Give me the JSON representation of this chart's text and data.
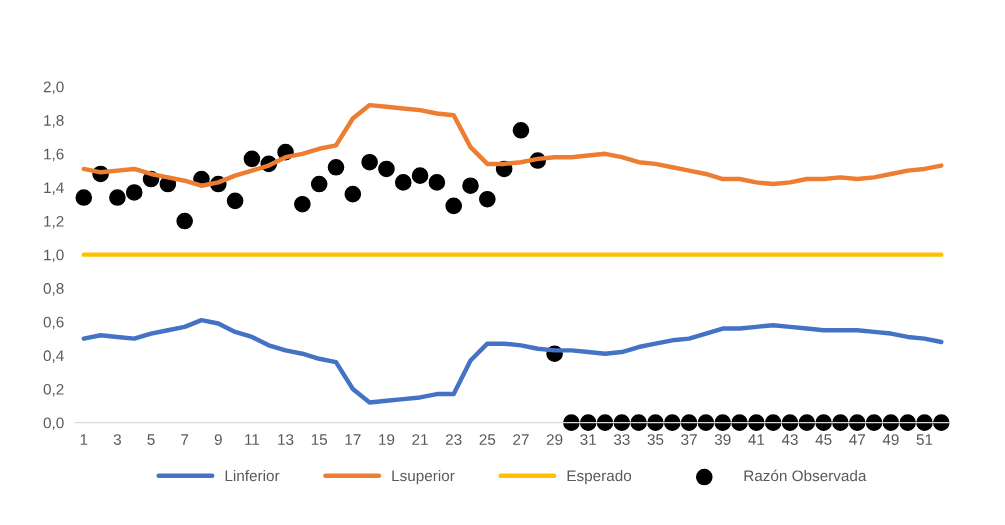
{
  "chart_data": {
    "type": "line",
    "categories": [
      "1",
      null,
      "3",
      null,
      "5",
      null,
      "7",
      null,
      "9",
      null,
      "11",
      null,
      "13",
      null,
      "15",
      null,
      "17",
      null,
      "19",
      null,
      "21",
      null,
      "23",
      null,
      "25",
      null,
      "27",
      null,
      "29",
      null,
      "31",
      null,
      "33",
      null,
      "35",
      null,
      "37",
      null,
      "39",
      null,
      "41",
      null,
      "43",
      null,
      "45",
      null,
      "47",
      null,
      "49",
      null,
      "51",
      null
    ],
    "series": [
      {
        "name": "Linferior",
        "color": "#4472c4",
        "marker": "none",
        "values": [
          0.5,
          0.52,
          0.51,
          0.5,
          0.53,
          0.55,
          0.57,
          0.61,
          0.59,
          0.54,
          0.51,
          0.46,
          0.43,
          0.41,
          0.38,
          0.36,
          0.2,
          0.12,
          0.13,
          0.14,
          0.15,
          0.17,
          0.17,
          0.37,
          0.47,
          0.47,
          0.46,
          0.44,
          0.43,
          0.43,
          0.42,
          0.41,
          0.42,
          0.45,
          0.47,
          0.49,
          0.5,
          0.53,
          0.56,
          0.56,
          0.57,
          0.58,
          0.57,
          0.56,
          0.55,
          0.55,
          0.55,
          0.54,
          0.53,
          0.51,
          0.5,
          0.48
        ]
      },
      {
        "name": "Lsuperior",
        "color": "#ed7d31",
        "marker": "none",
        "values": [
          1.51,
          1.49,
          1.5,
          1.51,
          1.48,
          1.46,
          1.44,
          1.41,
          1.43,
          1.47,
          1.5,
          1.53,
          1.58,
          1.6,
          1.63,
          1.65,
          1.81,
          1.89,
          1.88,
          1.87,
          1.86,
          1.84,
          1.83,
          1.64,
          1.54,
          1.54,
          1.55,
          1.57,
          1.58,
          1.58,
          1.59,
          1.6,
          1.58,
          1.55,
          1.54,
          1.52,
          1.5,
          1.48,
          1.45,
          1.45,
          1.43,
          1.42,
          1.43,
          1.45,
          1.45,
          1.46,
          1.45,
          1.46,
          1.48,
          1.5,
          1.51,
          1.53
        ]
      },
      {
        "name": "Esperado",
        "color": "#ffc000",
        "marker": "none",
        "values": [
          1.0,
          1.0,
          1.0,
          1.0,
          1.0,
          1.0,
          1.0,
          1.0,
          1.0,
          1.0,
          1.0,
          1.0,
          1.0,
          1.0,
          1.0,
          1.0,
          1.0,
          1.0,
          1.0,
          1.0,
          1.0,
          1.0,
          1.0,
          1.0,
          1.0,
          1.0,
          1.0,
          1.0,
          1.0,
          1.0,
          1.0,
          1.0,
          1.0,
          1.0,
          1.0,
          1.0,
          1.0,
          1.0,
          1.0,
          1.0,
          1.0,
          1.0,
          1.0,
          1.0,
          1.0,
          1.0,
          1.0,
          1.0,
          1.0,
          1.0,
          1.0,
          1.0
        ]
      },
      {
        "name": "Razón Observada",
        "color": "#000000",
        "type": "scatter",
        "marker": "circle",
        "values": [
          1.34,
          1.48,
          1.34,
          1.37,
          1.45,
          1.42,
          1.2,
          1.45,
          1.42,
          1.32,
          1.57,
          1.54,
          1.61,
          1.3,
          1.42,
          1.52,
          1.36,
          1.55,
          1.51,
          1.43,
          1.47,
          1.43,
          1.29,
          1.41,
          1.33,
          1.51,
          1.74,
          1.56,
          0.41,
          0,
          0,
          0,
          0,
          0,
          0,
          0,
          0,
          0,
          0,
          0,
          0,
          0,
          0,
          0,
          0,
          0,
          0,
          0,
          0,
          0,
          0,
          0
        ]
      }
    ],
    "ylim": [
      0,
      2
    ],
    "yticks": [
      {
        "value": 0,
        "label": "0,0"
      },
      {
        "value": 0.2,
        "label": "0,2"
      },
      {
        "value": 0.4,
        "label": "0,4"
      },
      {
        "value": 0.6,
        "label": "0,6"
      },
      {
        "value": 0.8,
        "label": "0,8"
      },
      {
        "value": 1.0,
        "label": "1,0"
      },
      {
        "value": 1.2,
        "label": "1,2"
      },
      {
        "value": 1.4,
        "label": "1,4"
      },
      {
        "value": 1.6,
        "label": "1,6"
      },
      {
        "value": 1.8,
        "label": "1,8"
      },
      {
        "value": 2.0,
        "label": "2,0"
      }
    ],
    "grid": false,
    "legend": "bottom"
  }
}
